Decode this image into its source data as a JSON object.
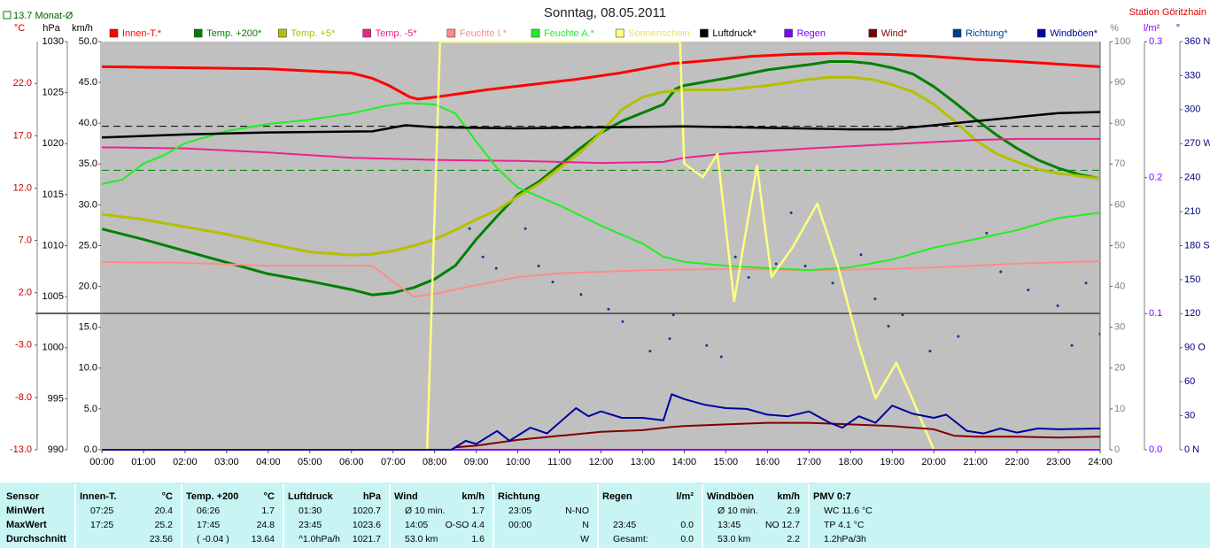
{
  "chart_data": {
    "type": "line",
    "title": "Sonntag, 08.05.2011",
    "station": "Station Göritzhain",
    "monthly_avg": {
      "label": "13.7 Monat-Ø",
      "value": 13.7,
      "axis": 0,
      "color": "#008000"
    },
    "reference_lines": [
      {
        "axis": 1,
        "value": 1021.7,
        "color": "#000000"
      }
    ],
    "xlim": [
      0,
      24
    ],
    "xticks": [
      {
        "value": 0,
        "label": "00:00"
      },
      {
        "value": 1,
        "label": "01:00"
      },
      {
        "value": 2,
        "label": "02:00"
      },
      {
        "value": 3,
        "label": "03:00"
      },
      {
        "value": 4,
        "label": "04:00"
      },
      {
        "value": 5,
        "label": "05:00"
      },
      {
        "value": 6,
        "label": "06:00"
      },
      {
        "value": 7,
        "label": "07:00"
      },
      {
        "value": 8,
        "label": "08:00"
      },
      {
        "value": 9,
        "label": "09:00"
      },
      {
        "value": 10,
        "label": "10:00"
      },
      {
        "value": 11,
        "label": "11:00"
      },
      {
        "value": 12,
        "label": "12:00"
      },
      {
        "value": 13,
        "label": "13:00"
      },
      {
        "value": 14,
        "label": "14:00"
      },
      {
        "value": 15,
        "label": "15:00"
      },
      {
        "value": 16,
        "label": "16:00"
      },
      {
        "value": 17,
        "label": "17:00"
      },
      {
        "value": 18,
        "label": "18:00"
      },
      {
        "value": 19,
        "label": "19:00"
      },
      {
        "value": 20,
        "label": "20:00"
      },
      {
        "value": 21,
        "label": "21:00"
      },
      {
        "value": 22,
        "label": "22:00"
      },
      {
        "value": 23,
        "label": "23:00"
      },
      {
        "value": 24,
        "label": "24:00"
      }
    ],
    "axes": [
      {
        "unit": "°C",
        "side": "left",
        "color": "#c00000",
        "ylim": [
          -13,
          26
        ],
        "yticks": [
          {
            "value": 22,
            "label": "22.0"
          },
          {
            "value": 17,
            "label": "17.0"
          },
          {
            "value": 12,
            "label": "12.0"
          },
          {
            "value": 7,
            "label": "7.0"
          },
          {
            "value": 2,
            "label": "2.0"
          },
          {
            "value": -3,
            "label": "-3.0"
          },
          {
            "value": -8,
            "label": "-8.0"
          },
          {
            "value": -13,
            "label": "-13.0"
          }
        ]
      },
      {
        "unit": "hPa",
        "side": "left",
        "color": "#000000",
        "ylim": [
          990,
          1030
        ],
        "yticks": [
          1030,
          1025,
          1020,
          1015,
          1010,
          1005,
          1000,
          995,
          990
        ]
      },
      {
        "unit": "km/h",
        "side": "left",
        "color": "#000000",
        "ylim": [
          0,
          50
        ],
        "yticks": [
          {
            "value": 50,
            "label": "50.0"
          },
          {
            "value": 45,
            "label": "45.0"
          },
          {
            "value": 40,
            "label": "40.0"
          },
          {
            "value": 35,
            "label": "35.0"
          },
          {
            "value": 30,
            "label": "30.0"
          },
          {
            "value": 25,
            "label": "25.0"
          },
          {
            "value": 20,
            "label": "20.0"
          },
          {
            "value": 15,
            "label": "15.0"
          },
          {
            "value": 10,
            "label": "10.0"
          },
          {
            "value": 5,
            "label": "5.0"
          },
          {
            "value": 0,
            "label": "0.0"
          }
        ]
      },
      {
        "unit": "%",
        "side": "right",
        "color": "#808080",
        "ylim": [
          0,
          100
        ],
        "yticks": [
          100,
          90,
          80,
          70,
          60,
          50,
          40,
          30,
          20,
          10,
          0
        ]
      },
      {
        "unit": "l/m²",
        "side": "right",
        "color": "#8000ff",
        "ylim": [
          0,
          0.3
        ],
        "yticks": [
          0.3,
          0.2,
          0.1,
          {
            "value": 0,
            "label": "0.0"
          }
        ]
      },
      {
        "unit": "°",
        "side": "right",
        "color": "#000080",
        "ylim": [
          0,
          360
        ],
        "yticks": [
          {
            "value": 360,
            "label": "360 N"
          },
          330,
          300,
          {
            "value": 270,
            "label": "270 W"
          },
          240,
          210,
          {
            "value": 180,
            "label": "180 S"
          },
          150,
          120,
          {
            "value": 90,
            "label": "90 O"
          },
          60,
          30,
          {
            "value": 0,
            "label": "0 N"
          }
        ]
      }
    ],
    "series": [
      {
        "name": "Innen-T.*",
        "color": "#ff0000",
        "axis": 0,
        "width": 3,
        "x": [
          0,
          4,
          6,
          6.5,
          6.9,
          7.4,
          7.6,
          8.2,
          9.26,
          10.33,
          11.4,
          12.45,
          13.7,
          14.6,
          15.65,
          16.7,
          17.8,
          18.8,
          19.9,
          21,
          22,
          24
        ],
        "values": [
          23.6,
          23.4,
          23.0,
          22.5,
          21.8,
          20.7,
          20.5,
          20.8,
          21.4,
          21.9,
          22.4,
          23.0,
          23.9,
          24.2,
          24.6,
          24.8,
          24.9,
          24.8,
          24.6,
          24.3,
          24.1,
          23.6
        ]
      },
      {
        "name": "Temp. +200*",
        "color": "#008000",
        "axis": 0,
        "width": 3,
        "x": [
          0,
          1,
          2,
          3,
          4,
          5,
          6,
          6.5,
          7,
          7.5,
          8,
          8.5,
          9,
          9.5,
          10,
          10.5,
          11,
          11.5,
          12,
          12.5,
          13,
          13.5,
          13.8,
          14,
          15,
          16,
          17,
          17.5,
          18,
          18.5,
          19,
          19.5,
          20,
          20.5,
          21,
          21.5,
          22,
          22.5,
          23,
          23.5,
          24
        ],
        "values": [
          8.1,
          7.1,
          6.0,
          4.9,
          3.8,
          3.1,
          2.3,
          1.8,
          2.0,
          2.5,
          3.3,
          4.6,
          7.1,
          9.3,
          11.4,
          12.6,
          14.2,
          15.8,
          17.3,
          18.4,
          19.2,
          20.0,
          21.5,
          21.8,
          22.5,
          23.3,
          23.8,
          24.1,
          24.1,
          23.9,
          23.5,
          22.9,
          21.7,
          20.2,
          18.6,
          17.1,
          15.8,
          14.7,
          13.9,
          13.3,
          12.9
        ]
      },
      {
        "name": "Temp. +5*",
        "color": "#b4c000",
        "axis": 0,
        "width": 3,
        "x": [
          0,
          1,
          2,
          3,
          4,
          5,
          6,
          6.5,
          7,
          7.5,
          8,
          8.5,
          9,
          9.5,
          10,
          10.5,
          11,
          11.5,
          12,
          12.5,
          13,
          13.5,
          14,
          15,
          16,
          17,
          17.5,
          18,
          18.5,
          19,
          19.5,
          20,
          20.5,
          21,
          21.5,
          22,
          22.5,
          23,
          24
        ],
        "values": [
          9.5,
          9.0,
          8.3,
          7.6,
          6.7,
          5.9,
          5.6,
          5.7,
          6.0,
          6.5,
          7.1,
          8.0,
          9.0,
          9.9,
          11.2,
          12.4,
          13.9,
          15.4,
          17.3,
          19.5,
          20.7,
          21.2,
          21.4,
          21.4,
          21.8,
          22.4,
          22.6,
          22.6,
          22.4,
          21.9,
          21.2,
          20.0,
          18.4,
          16.6,
          15.3,
          14.5,
          13.8,
          13.4,
          12.9
        ]
      },
      {
        "name": "Temp. -5*",
        "color": "#f0208c",
        "axis": 0,
        "width": 2,
        "x": [
          0,
          2,
          4,
          6,
          8,
          10,
          12,
          13.5,
          14,
          15,
          17,
          19,
          21,
          22,
          24
        ],
        "values": [
          15.9,
          15.8,
          15.4,
          14.9,
          14.7,
          14.6,
          14.4,
          14.5,
          14.9,
          15.3,
          15.8,
          16.2,
          16.6,
          16.7,
          16.7
        ]
      },
      {
        "name": "Feuchte I.*",
        "color": "#ff8c8c",
        "axis": 3,
        "width": 2,
        "x": [
          0,
          2,
          4,
          6.5,
          7,
          7.5,
          8,
          9,
          10,
          11,
          12,
          13,
          15,
          17,
          19,
          21,
          22,
          24
        ],
        "values": [
          46.0,
          45.8,
          45.1,
          45.1,
          41.2,
          37.5,
          38.2,
          40.3,
          42.3,
          43.2,
          43.6,
          44.0,
          44.3,
          44.0,
          44.3,
          45.1,
          45.6,
          46.2
        ]
      },
      {
        "name": "Feuchte A.*",
        "color": "#20f020",
        "axis": 3,
        "width": 2,
        "x": [
          0,
          0.5,
          1,
          1.5,
          2,
          3,
          4,
          5,
          6,
          6.8,
          7.3,
          8,
          8.5,
          9,
          9.5,
          10,
          11,
          12,
          13,
          13.5,
          14,
          15,
          16,
          17,
          18,
          19,
          20,
          21,
          22,
          23,
          24
        ],
        "values": [
          65.1,
          66.2,
          70.1,
          72.2,
          75.1,
          78.1,
          79.8,
          80.9,
          82.4,
          84.2,
          85.0,
          84.6,
          82.4,
          75.5,
          69.0,
          64.2,
          59.9,
          54.9,
          50.5,
          47.3,
          46.0,
          45.1,
          44.5,
          44.0,
          44.7,
          46.6,
          49.5,
          51.6,
          53.8,
          56.8,
          58.1
        ]
      },
      {
        "name": "Sonnenschein",
        "color": "#ffff80",
        "axis": 3,
        "width": 2.5,
        "x": [
          0,
          7.82,
          8.13,
          13.9,
          14.0,
          14.45,
          14.8,
          15.2,
          15.75,
          16.1,
          16.6,
          17.2,
          17.7,
          18.2,
          18.6,
          19.1,
          19.5,
          20.0,
          24
        ],
        "values": [
          0,
          0,
          100,
          100,
          70.1,
          66.8,
          72.5,
          36.4,
          69.6,
          42.3,
          49.5,
          60.3,
          44.7,
          25.6,
          12.6,
          21.3,
          12.1,
          0,
          0
        ]
      },
      {
        "name": "Luftdruck*",
        "color": "#000000",
        "axis": 1,
        "width": 2.5,
        "x": [
          0,
          2,
          4,
          6.5,
          7.3,
          8,
          10,
          14,
          18,
          19,
          20,
          21,
          22,
          23,
          24
        ],
        "values": [
          1020.6,
          1020.9,
          1021.1,
          1021.2,
          1021.8,
          1021.6,
          1021.5,
          1021.7,
          1021.4,
          1021.4,
          1021.8,
          1022.2,
          1022.6,
          1023.0,
          1023.1
        ]
      },
      {
        "name": "Regen",
        "color": "#8000ff",
        "axis": 4,
        "width": 2,
        "x": [
          0,
          24
        ],
        "values": [
          0,
          0
        ]
      },
      {
        "name": "Wind*",
        "color": "#800000",
        "axis": 2,
        "width": 2,
        "x": [
          0,
          8.4,
          8.5,
          9,
          10,
          11,
          12,
          13,
          13.7,
          14,
          15,
          16,
          17,
          18,
          19,
          20,
          20.5,
          21,
          22,
          23,
          24
        ],
        "values": [
          0,
          0,
          0.3,
          0.5,
          1.2,
          1.7,
          2.2,
          2.4,
          2.8,
          2.9,
          3.1,
          3.3,
          3.3,
          3.1,
          2.9,
          2.5,
          1.7,
          1.6,
          1.6,
          1.5,
          1.6
        ]
      },
      {
        "name": "Richtung*",
        "color": "#003c96",
        "axis": 5,
        "style": "dots",
        "x": [
          8.84,
          9.16,
          9.48,
          10.18,
          10.5,
          10.84,
          11.52,
          12.18,
          12.52,
          13.18,
          13.65,
          13.74,
          14.54,
          14.89,
          15.23,
          15.55,
          16.21,
          16.57,
          16.91,
          17.57,
          18.25,
          18.59,
          18.91,
          19.25,
          19.91,
          20.59,
          21.27,
          21.61,
          22.27,
          22.98,
          23.32,
          23.66,
          24
        ],
        "values": [
          195,
          170,
          160,
          195,
          162,
          148,
          137,
          124,
          113,
          87,
          98,
          119,
          92,
          82,
          170,
          152,
          164,
          209,
          162,
          147,
          172,
          133,
          109,
          119,
          87,
          100,
          191,
          157,
          141,
          127,
          92,
          147,
          102
        ]
      },
      {
        "name": "Windböen*",
        "color": "#0000a0",
        "axis": 2,
        "width": 2,
        "x": [
          0,
          8.4,
          8.75,
          9,
          9.5,
          9.8,
          10.3,
          10.7,
          11.4,
          11.7,
          12,
          12.5,
          13,
          13.5,
          13.7,
          14,
          14.5,
          15,
          15.5,
          16,
          16.5,
          17,
          17.5,
          17.8,
          18.2,
          18.6,
          19,
          19.5,
          20,
          20.3,
          20.8,
          21.2,
          21.6,
          22,
          22.5,
          23,
          24
        ],
        "values": [
          0,
          0,
          1.1,
          0.7,
          2.3,
          1.1,
          2.7,
          2.0,
          5.1,
          4.1,
          4.7,
          3.9,
          3.9,
          3.6,
          6.8,
          6.2,
          5.5,
          5.1,
          5.0,
          4.3,
          4.1,
          4.7,
          3.3,
          2.7,
          4.1,
          3.3,
          5.4,
          4.4,
          3.9,
          4.3,
          2.3,
          2.0,
          2.6,
          2.1,
          2.6,
          2.5,
          2.6
        ]
      }
    ]
  },
  "table": {
    "columns": [
      {
        "header": {
          "left": "Sensor"
        },
        "rows": [
          {
            "left": "MinWert"
          },
          {
            "left": "MaxWert"
          },
          {
            "left": "Durchschnitt"
          }
        ]
      },
      {
        "header": {
          "left": "Innen-T.",
          "right": "°C"
        },
        "rows": [
          {
            "left": "07:25",
            "right": "20.4"
          },
          {
            "left": "17:25",
            "right": "25.2"
          },
          {
            "right": "23.56"
          }
        ]
      },
      {
        "header": {
          "left": "Temp. +200",
          "right": "°C"
        },
        "rows": [
          {
            "left": "06:26",
            "right": "1.7"
          },
          {
            "left": "17:45",
            "right": "24.8"
          },
          {
            "left": "( -0.04 )",
            "right": "13.64"
          }
        ]
      },
      {
        "header": {
          "left": "Luftdruck",
          "right": "hPa"
        },
        "rows": [
          {
            "left": "01:30",
            "right": "1020.7"
          },
          {
            "left": "23:45",
            "right": "1023.6"
          },
          {
            "left": "^1.0hPa/h",
            "right": "1021.7"
          }
        ]
      },
      {
        "header": {
          "left": "Wind",
          "right": "km/h"
        },
        "rows": [
          {
            "left": "Ø 10 min.",
            "right": "1.7"
          },
          {
            "left": "14:05",
            "right": "O-SO 4.4"
          },
          {
            "left": "53.0 km",
            "right": "1.6"
          }
        ]
      },
      {
        "header": {
          "left": "Richtung"
        },
        "rows": [
          {
            "left": "23:05",
            "right": "N-NO"
          },
          {
            "left": "00:00",
            "right": "N"
          },
          {
            "right": "W"
          }
        ]
      },
      {
        "header": {
          "left": "Regen",
          "right": "l/m²"
        },
        "rows": [
          {},
          {
            "left": "23:45",
            "right": "0.0"
          },
          {
            "left": "Gesamt:",
            "right": "0.0"
          }
        ]
      },
      {
        "header": {
          "left": "Windböen",
          "right": "km/h"
        },
        "rows": [
          {
            "left": "Ø 10 min.",
            "right": "2.9"
          },
          {
            "left": "13:45",
            "right": "NO 12.7"
          },
          {
            "left": "53.0 km",
            "right": "2.2"
          }
        ]
      },
      {
        "header": {
          "left": "PMV 0:7"
        },
        "rows": [
          {
            "left": "WC 11.6 °C"
          },
          {
            "left": "TP 4.1 °C"
          },
          {
            "left": "1.2hPa/3h"
          }
        ]
      }
    ]
  }
}
